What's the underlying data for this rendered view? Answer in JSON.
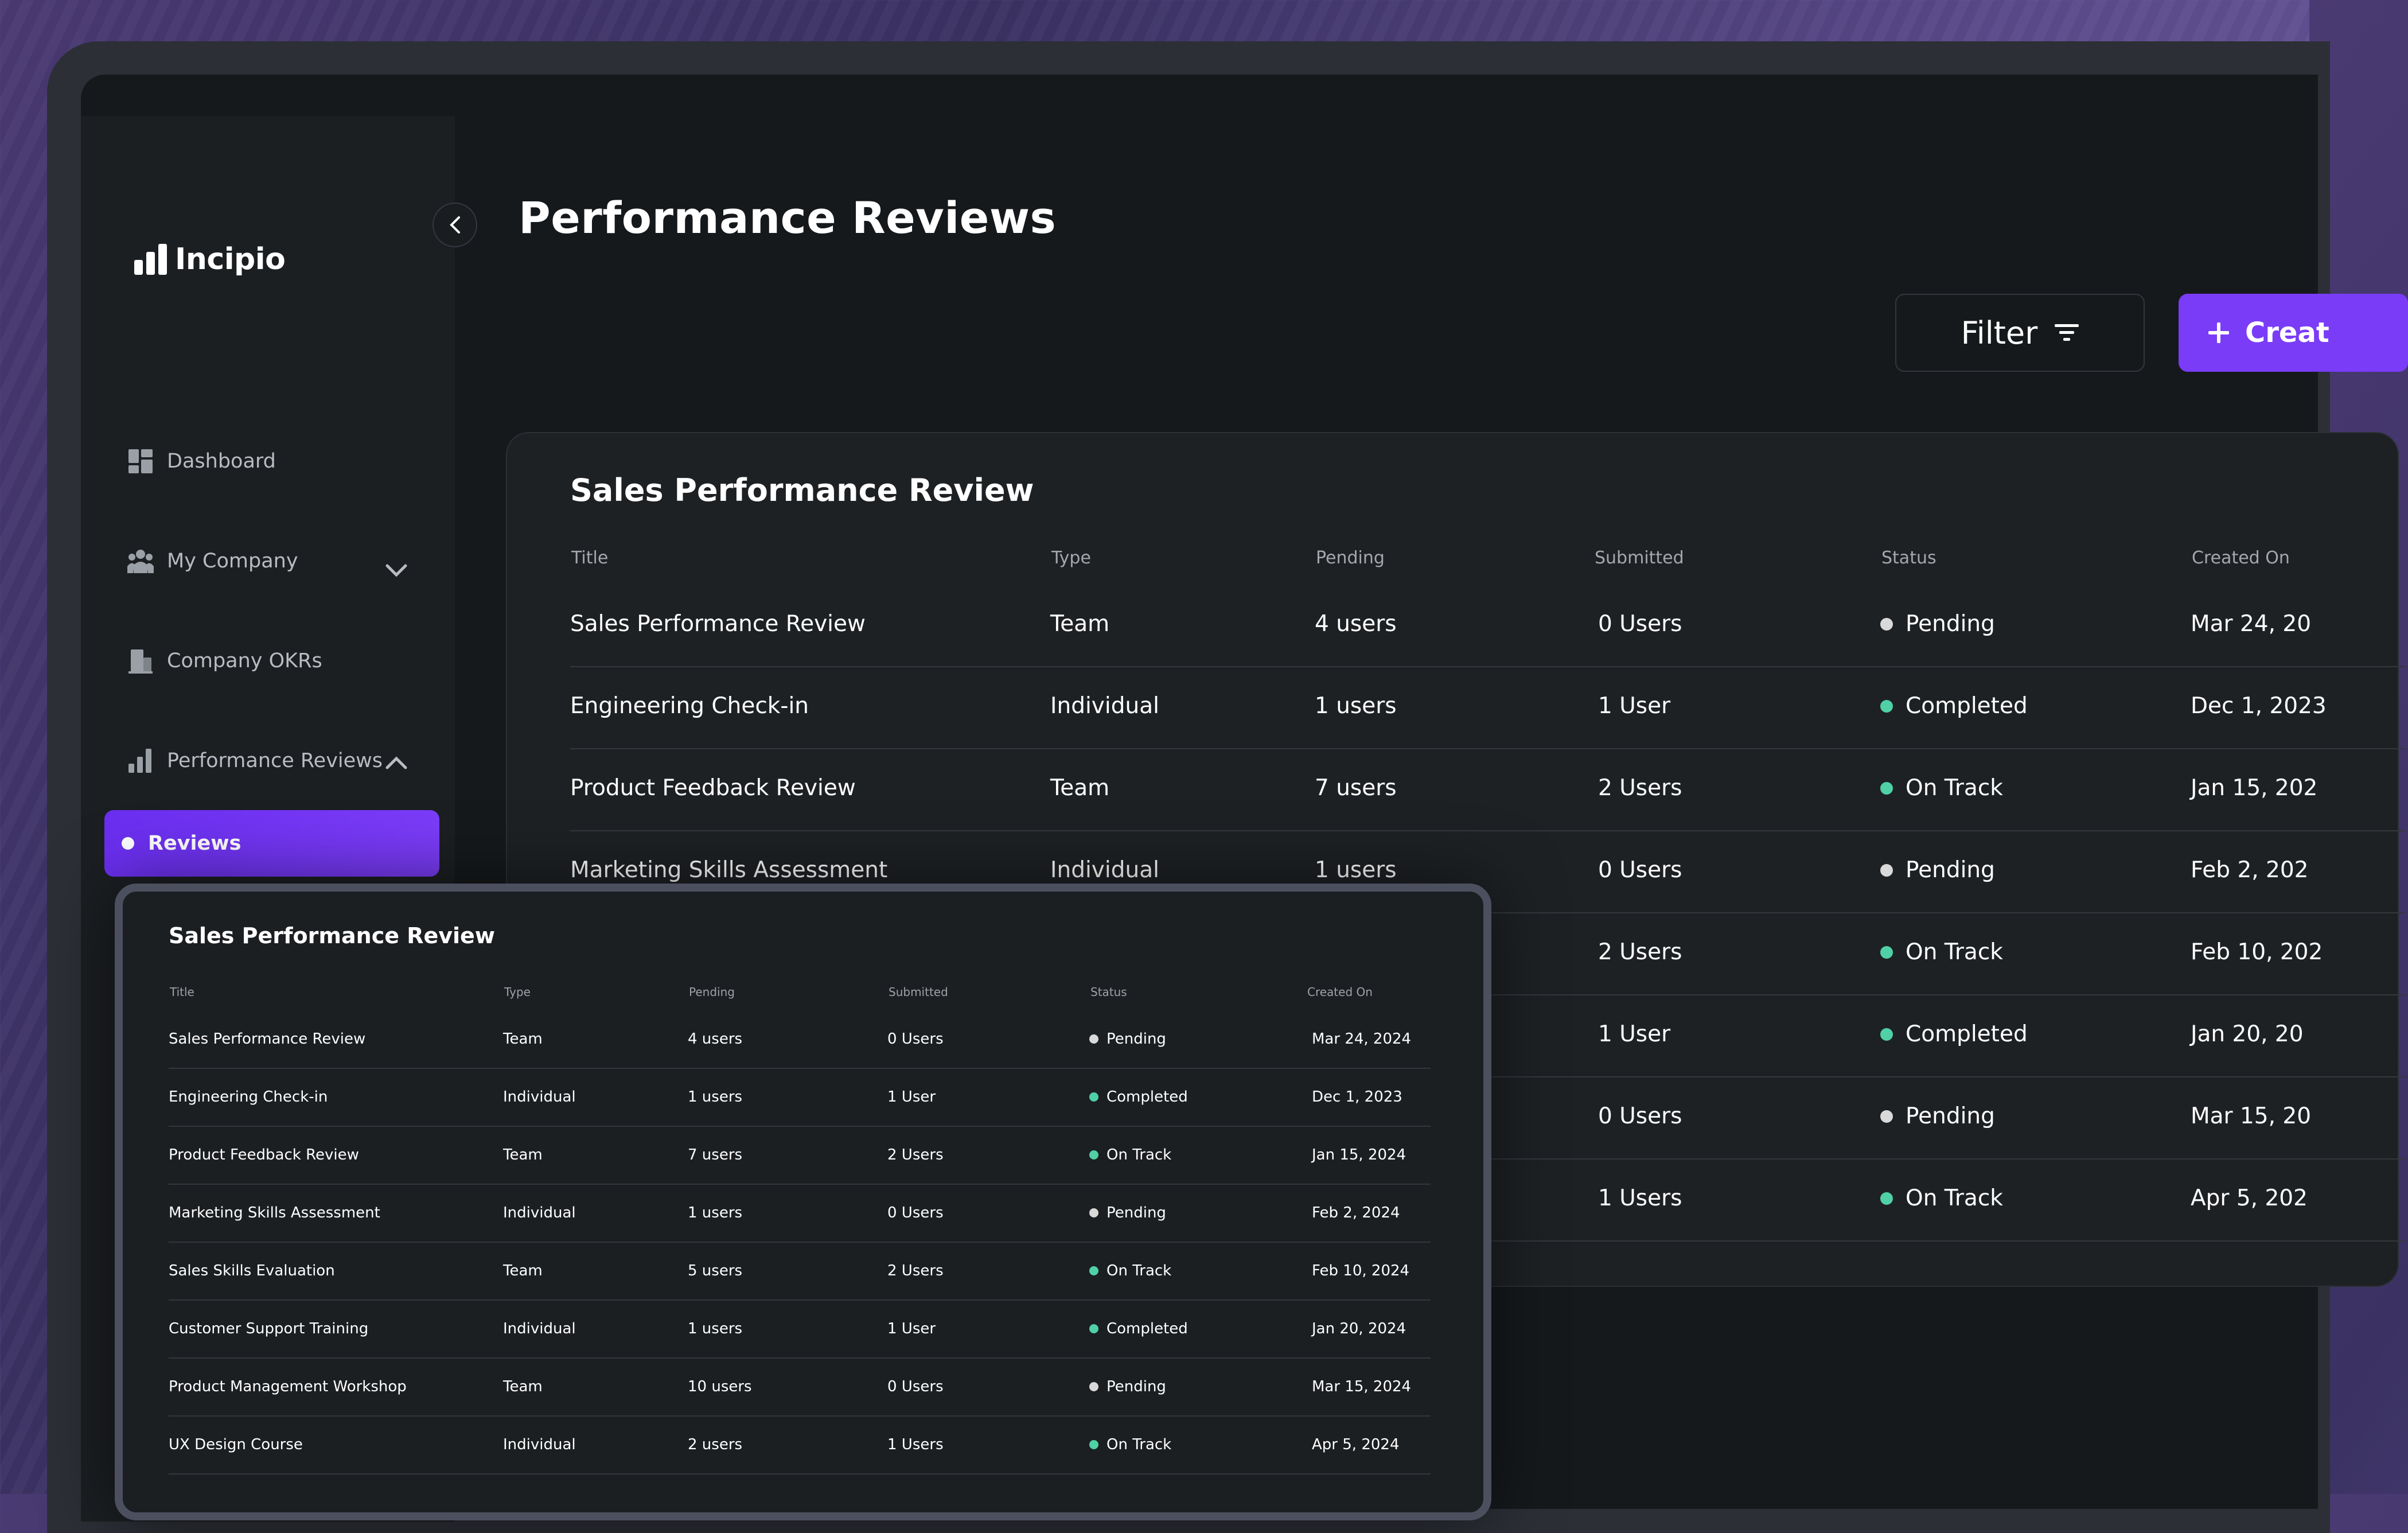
{
  "app": {
    "name": "Incipio"
  },
  "colors": {
    "accent": "#7a3cf7",
    "pending": "#d9d9d9",
    "success": "#4fd1a5",
    "background": "#16191c"
  },
  "sidebar": {
    "items": [
      {
        "label": "Dashboard",
        "icon": "dashboard-icon"
      },
      {
        "label": "My Company",
        "icon": "team-icon"
      },
      {
        "label": "Company OKRs",
        "icon": "building-icon"
      },
      {
        "label": "Performance Reviews",
        "icon": "bar-chart-icon"
      }
    ],
    "active_subitem": "Reviews"
  },
  "page": {
    "title": "Performance Reviews",
    "filter_label": "Filter",
    "create_label": "Creat"
  },
  "main_table": {
    "title": "Sales Performance Review",
    "columns": [
      "Title",
      "Type",
      "Pending",
      "Submitted",
      "Status",
      "Created On"
    ],
    "rows": [
      {
        "title": "Sales Performance Review",
        "type": "Team",
        "pending": "4 users",
        "submitted": "0 Users",
        "status": "Pending",
        "created": "Mar 24, 20"
      },
      {
        "title": "Engineering Check-in",
        "type": "Individual",
        "pending": "1 users",
        "submitted": "1 User",
        "status": "Completed",
        "created": "Dec 1, 2023"
      },
      {
        "title": "Product Feedback Review",
        "type": "Team",
        "pending": "7 users",
        "submitted": "2 Users",
        "status": "On Track",
        "created": "Jan 15, 202"
      },
      {
        "title": "Marketing Skills Assessment",
        "type": "Individual",
        "pending": "1 users",
        "submitted": "0 Users",
        "status": "Pending",
        "created": "Feb 2, 202"
      },
      {
        "title": "",
        "type": "",
        "pending": "",
        "submitted": "2 Users",
        "status": "On Track",
        "created": "Feb 10, 202"
      },
      {
        "title": "",
        "type": "",
        "pending": "",
        "submitted": "1 User",
        "status": "Completed",
        "created": "Jan 20, 20"
      },
      {
        "title": "",
        "type": "",
        "pending": "",
        "submitted": "0 Users",
        "status": "Pending",
        "created": "Mar 15, 20"
      },
      {
        "title": "",
        "type": "",
        "pending": "",
        "submitted": "1 Users",
        "status": "On Track",
        "created": "Apr 5, 202"
      }
    ]
  },
  "overlay_table": {
    "title": "Sales Performance Review",
    "columns": [
      "Title",
      "Type",
      "Pending",
      "Submitted",
      "Status",
      "Created On"
    ],
    "rows": [
      {
        "title": "Sales Performance Review",
        "type": "Team",
        "pending": "4 users",
        "submitted": "0 Users",
        "status": "Pending",
        "created": "Mar 24, 2024"
      },
      {
        "title": "Engineering Check-in",
        "type": "Individual",
        "pending": "1 users",
        "submitted": "1 User",
        "status": "Completed",
        "created": "Dec 1, 2023"
      },
      {
        "title": "Product Feedback Review",
        "type": "Team",
        "pending": "7 users",
        "submitted": "2 Users",
        "status": "On Track",
        "created": "Jan 15, 2024"
      },
      {
        "title": "Marketing Skills Assessment",
        "type": "Individual",
        "pending": "1 users",
        "submitted": "0 Users",
        "status": "Pending",
        "created": "Feb 2, 2024"
      },
      {
        "title": "Sales Skills Evaluation",
        "type": "Team",
        "pending": "5 users",
        "submitted": "2 Users",
        "status": "On Track",
        "created": "Feb 10, 2024"
      },
      {
        "title": "Customer Support Training",
        "type": "Individual",
        "pending": "1 users",
        "submitted": "1 User",
        "status": "Completed",
        "created": "Jan 20, 2024"
      },
      {
        "title": "Product Management Workshop",
        "type": "Team",
        "pending": "10 users",
        "submitted": "0 Users",
        "status": "Pending",
        "created": "Mar 15, 2024"
      },
      {
        "title": "UX Design Course",
        "type": "Individual",
        "pending": "2 users",
        "submitted": "1 Users",
        "status": "On Track",
        "created": "Apr 5, 2024"
      }
    ]
  }
}
